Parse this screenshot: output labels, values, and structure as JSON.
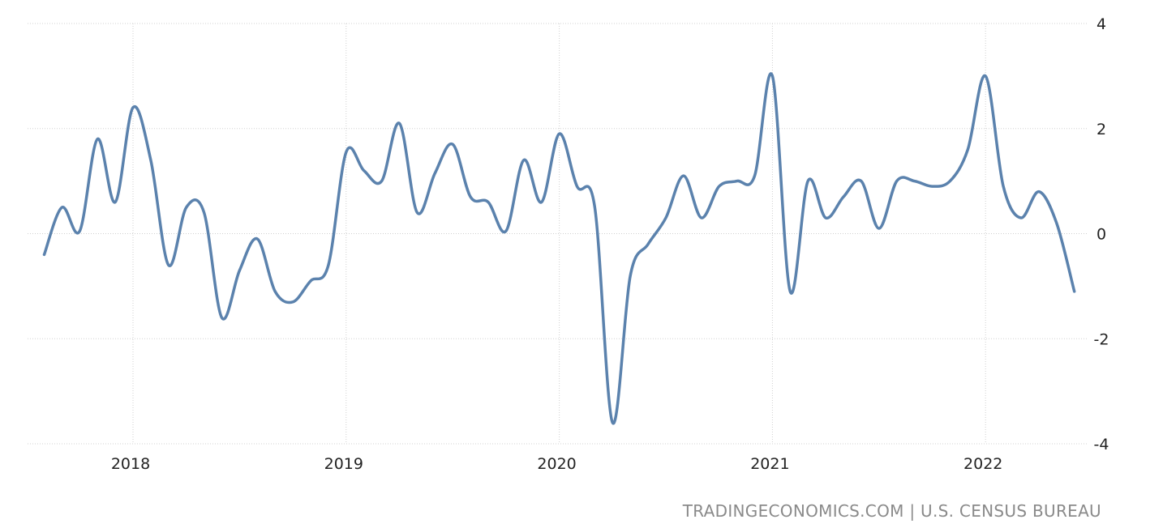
{
  "source_text": "TRADINGECONOMICS.COM | U.S. CENSUS BUREAU",
  "chart_data": {
    "type": "line",
    "title": "",
    "xlabel": "",
    "ylabel": "",
    "ylim": [
      -4,
      4
    ],
    "y_ticks": [
      4,
      2,
      0,
      -2,
      -4
    ],
    "y_tick_labels": [
      "4",
      "2",
      "0",
      "-2",
      "-4"
    ],
    "x_ticks": [
      "2018-01",
      "2019-01",
      "2020-01",
      "2021-01",
      "2022-01"
    ],
    "x_tick_labels": [
      "2018",
      "2019",
      "2020",
      "2021",
      "2022"
    ],
    "grid": true,
    "legend": "none",
    "y_axis_side": "right",
    "line_color": "#5b82ad",
    "x": [
      "2017-08",
      "2017-09",
      "2017-10",
      "2017-11",
      "2017-12",
      "2018-01",
      "2018-02",
      "2018-03",
      "2018-04",
      "2018-05",
      "2018-06",
      "2018-07",
      "2018-08",
      "2018-09",
      "2018-10",
      "2018-11",
      "2018-12",
      "2019-01",
      "2019-02",
      "2019-03",
      "2019-04",
      "2019-05",
      "2019-06",
      "2019-07",
      "2019-08",
      "2019-09",
      "2019-10",
      "2019-11",
      "2019-12",
      "2020-01",
      "2020-02",
      "2020-03",
      "2020-04",
      "2020-05",
      "2020-06",
      "2020-07",
      "2020-08",
      "2020-09",
      "2020-10",
      "2020-11",
      "2020-12",
      "2021-01",
      "2021-02",
      "2021-03",
      "2021-04",
      "2021-05",
      "2021-06",
      "2021-07",
      "2021-08",
      "2021-09",
      "2021-10",
      "2021-11",
      "2021-12",
      "2022-01",
      "2022-02",
      "2022-03",
      "2022-04",
      "2022-05",
      "2022-06"
    ],
    "values": [
      -0.4,
      0.5,
      0.05,
      1.8,
      0.6,
      2.4,
      1.4,
      -0.6,
      0.5,
      0.4,
      -1.6,
      -0.7,
      -0.1,
      -1.1,
      -1.3,
      -0.9,
      -0.6,
      1.55,
      1.2,
      1.0,
      2.1,
      0.4,
      1.15,
      1.7,
      0.7,
      0.6,
      0.05,
      1.4,
      0.6,
      1.9,
      0.9,
      0.5,
      -3.6,
      -0.8,
      -0.2,
      0.3,
      1.1,
      0.3,
      0.9,
      1.0,
      1.1,
      3.0,
      -1.1,
      1.0,
      0.3,
      0.7,
      1.0,
      0.1,
      1.0,
      1.0,
      0.9,
      1.0,
      1.6,
      3.0,
      0.9,
      0.3,
      0.8,
      0.2,
      -1.1
    ]
  }
}
